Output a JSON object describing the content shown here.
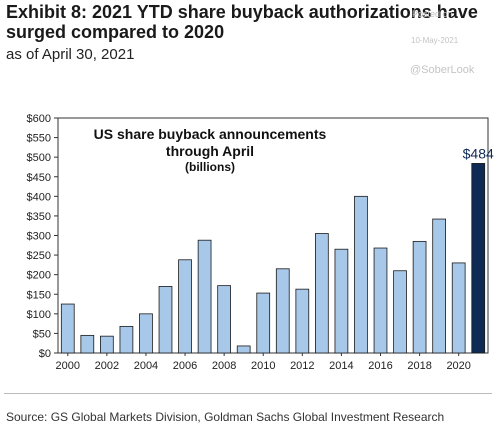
{
  "header": {
    "title": "Exhibit 8: 2021 YTD share buyback authorizations have surged compared to 2020",
    "subtitle": "as of April 30, 2021"
  },
  "watermark": {
    "posted": "Posted on",
    "date": "10-May-2021",
    "handle": "@SoberLook"
  },
  "footer": {
    "source": "Source: GS Global Markets Division, Goldman Sachs Global Investment Research"
  },
  "chart_data": {
    "type": "bar",
    "title": "US share buyback announcements through April",
    "subtitle": "(billions)",
    "categories": [
      "2000",
      "2001",
      "2002",
      "2003",
      "2004",
      "2005",
      "2006",
      "2007",
      "2008",
      "2009",
      "2010",
      "2011",
      "2012",
      "2013",
      "2014",
      "2015",
      "2016",
      "2017",
      "2018",
      "2019",
      "2020",
      "2021"
    ],
    "tick_labels": [
      "2000",
      "2002",
      "2004",
      "2006",
      "2008",
      "2010",
      "2012",
      "2014",
      "2016",
      "2018",
      "2020"
    ],
    "values": [
      125,
      45,
      43,
      68,
      100,
      170,
      238,
      288,
      172,
      18,
      153,
      215,
      163,
      305,
      265,
      400,
      268,
      210,
      285,
      342,
      230,
      484
    ],
    "highlight": {
      "index": 21,
      "label": "$484",
      "color": "#0f2a55"
    },
    "bar_color": "#a8c8ea",
    "ylim": [
      0,
      600
    ],
    "yticks": [
      "$0",
      "$50",
      "$100",
      "$150",
      "$200",
      "$250",
      "$300",
      "$350",
      "$400",
      "$450",
      "$500",
      "$550",
      "$600"
    ],
    "grid": false,
    "legend": "none"
  }
}
